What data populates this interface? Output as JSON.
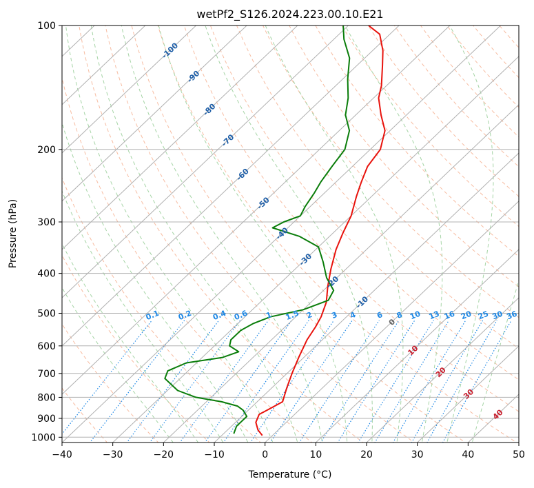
{
  "chart_data": {
    "type": "line",
    "subtype": "skew-t log-p diagram",
    "title": "wetPf2_S126.2024.223.00.10.E21",
    "xlabel": "Temperature (°C)",
    "ylabel": "Pressure (hPa)",
    "xlim": [
      -40,
      50
    ],
    "ylim": [
      1030,
      100
    ],
    "y_scale": "log",
    "grid": true,
    "x_ticks": [
      -40,
      -30,
      -20,
      -10,
      0,
      10,
      20,
      30,
      40,
      50
    ],
    "x_tick_labels": [
      "−40",
      "−30",
      "−20",
      "−10",
      "0",
      "10",
      "20",
      "30",
      "40",
      "50"
    ],
    "y_ticks": [
      100,
      200,
      300,
      400,
      500,
      600,
      700,
      800,
      900,
      1000
    ],
    "y_tick_labels": [
      "100",
      "200",
      "300",
      "400",
      "500",
      "600",
      "700",
      "800",
      "900",
      "1000"
    ],
    "isotherm_labels": [
      {
        "value": -100,
        "label": "-100",
        "p": 115
      },
      {
        "value": -90,
        "label": "-90",
        "p": 133
      },
      {
        "value": -80,
        "label": "-80",
        "p": 160
      },
      {
        "value": -70,
        "label": "-70",
        "p": 190
      },
      {
        "value": -60,
        "label": "-60",
        "p": 230
      },
      {
        "value": -50,
        "label": "-50",
        "p": 270
      },
      {
        "value": -40,
        "label": "-40",
        "p": 320
      },
      {
        "value": -30,
        "label": "-30",
        "p": 370
      },
      {
        "value": -20,
        "label": "-20",
        "p": 420
      },
      {
        "value": -10,
        "label": "-10",
        "p": 470
      },
      {
        "value": 0,
        "label": "0",
        "p": 525
      },
      {
        "value": 10,
        "label": "10",
        "p": 615
      },
      {
        "value": 20,
        "label": "20",
        "p": 695
      },
      {
        "value": 30,
        "label": "30",
        "p": 785
      },
      {
        "value": 40,
        "label": "40",
        "p": 880
      }
    ],
    "mixing_ratio_labels": [
      {
        "value": 0.1,
        "label": "0.1"
      },
      {
        "value": 0.2,
        "label": "0.2"
      },
      {
        "value": 0.4,
        "label": "0.4"
      },
      {
        "value": 0.6,
        "label": "0.6"
      },
      {
        "value": 1,
        "label": "1"
      },
      {
        "value": 1.5,
        "label": "1.5"
      },
      {
        "value": 2,
        "label": "2"
      },
      {
        "value": 3,
        "label": "3"
      },
      {
        "value": 4,
        "label": "4"
      },
      {
        "value": 6,
        "label": "6"
      },
      {
        "value": 8,
        "label": "8"
      },
      {
        "value": 10,
        "label": "10"
      },
      {
        "value": 13,
        "label": "13"
      },
      {
        "value": 16,
        "label": "16"
      },
      {
        "value": 20,
        "label": "20"
      },
      {
        "value": 25,
        "label": "25"
      },
      {
        "value": 30,
        "label": "30"
      },
      {
        "value": 36,
        "label": "36"
      }
    ],
    "series": [
      {
        "color": "#e8120c",
        "points": [
          {
            "t": -2,
            "p": 990
          },
          {
            "t": -4,
            "p": 960
          },
          {
            "t": -6,
            "p": 920
          },
          {
            "t": -7,
            "p": 880
          },
          {
            "t": -6,
            "p": 850
          },
          {
            "t": -5,
            "p": 820
          },
          {
            "t": -7,
            "p": 760
          },
          {
            "t": -9,
            "p": 700
          },
          {
            "t": -11,
            "p": 640
          },
          {
            "t": -13,
            "p": 580
          },
          {
            "t": -14,
            "p": 540
          },
          {
            "t": -15,
            "p": 510
          },
          {
            "t": -17,
            "p": 470
          },
          {
            "t": -20,
            "p": 430
          },
          {
            "t": -23,
            "p": 390
          },
          {
            "t": -26,
            "p": 350
          },
          {
            "t": -28,
            "p": 320
          },
          {
            "t": -30,
            "p": 290
          },
          {
            "t": -33,
            "p": 260
          },
          {
            "t": -35,
            "p": 240
          },
          {
            "t": -37,
            "p": 220
          },
          {
            "t": -38,
            "p": 200
          },
          {
            "t": -41,
            "p": 180
          },
          {
            "t": -45,
            "p": 165
          },
          {
            "t": -49,
            "p": 150
          },
          {
            "t": -51,
            "p": 140
          },
          {
            "t": -55,
            "p": 125
          },
          {
            "t": -58,
            "p": 115
          },
          {
            "t": -62,
            "p": 105
          },
          {
            "t": -66,
            "p": 100
          }
        ]
      },
      {
        "color": "#0a7d0a",
        "points": [
          {
            "t": -8,
            "p": 980
          },
          {
            "t": -9,
            "p": 940
          },
          {
            "t": -9,
            "p": 890
          },
          {
            "t": -11,
            "p": 860
          },
          {
            "t": -13,
            "p": 840
          },
          {
            "t": -17,
            "p": 820
          },
          {
            "t": -23,
            "p": 800
          },
          {
            "t": -28,
            "p": 770
          },
          {
            "t": -33,
            "p": 720
          },
          {
            "t": -34,
            "p": 690
          },
          {
            "t": -32,
            "p": 660
          },
          {
            "t": -26,
            "p": 640
          },
          {
            "t": -24,
            "p": 620
          },
          {
            "t": -27,
            "p": 600
          },
          {
            "t": -28,
            "p": 580
          },
          {
            "t": -28,
            "p": 550
          },
          {
            "t": -27,
            "p": 530
          },
          {
            "t": -25,
            "p": 510
          },
          {
            "t": -20,
            "p": 490
          },
          {
            "t": -17,
            "p": 465
          },
          {
            "t": -18,
            "p": 440
          },
          {
            "t": -22,
            "p": 410
          },
          {
            "t": -26,
            "p": 375
          },
          {
            "t": -30,
            "p": 345
          },
          {
            "t": -36,
            "p": 325
          },
          {
            "t": -43,
            "p": 310
          },
          {
            "t": -42,
            "p": 300
          },
          {
            "t": -40,
            "p": 290
          },
          {
            "t": -41,
            "p": 275
          },
          {
            "t": -42,
            "p": 255
          },
          {
            "t": -43,
            "p": 240
          },
          {
            "t": -44,
            "p": 220
          },
          {
            "t": -45,
            "p": 200
          },
          {
            "t": -48,
            "p": 180
          },
          {
            "t": -52,
            "p": 165
          },
          {
            "t": -55,
            "p": 150
          },
          {
            "t": -59,
            "p": 135
          },
          {
            "t": -63,
            "p": 120
          },
          {
            "t": -68,
            "p": 108
          },
          {
            "t": -71,
            "p": 100
          }
        ]
      }
    ]
  },
  "style": {
    "background": "#ffffff",
    "grid_color": "#b0b0b0",
    "dry_adiabat_color": "#f4a582",
    "moist_adiabat_color": "#8fc98f",
    "mixing_ratio_color": "#1e88e5",
    "upper_adiabat_label_color": "#1f5fa8",
    "lower_adiabat_label_color": "#c8202f",
    "zero_label_color": "#666666"
  }
}
